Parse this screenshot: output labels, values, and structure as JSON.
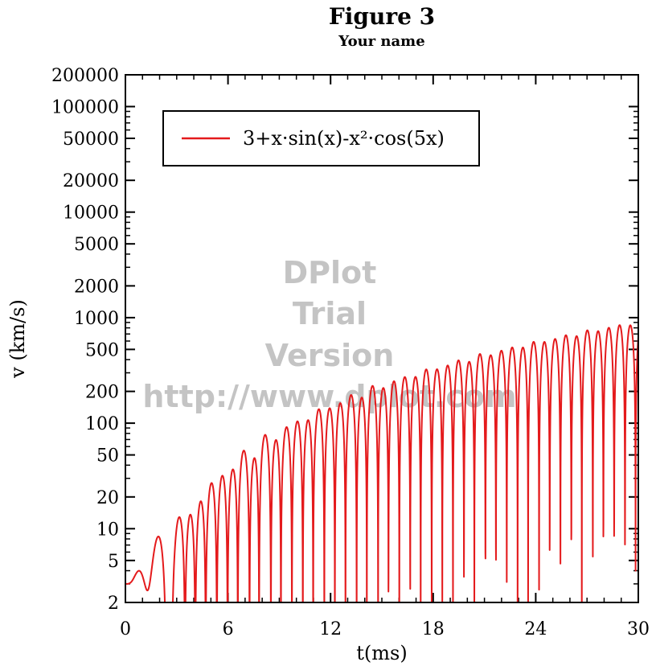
{
  "chart_data": {
    "type": "line",
    "title": "Figure 3",
    "subtitle": "Your name",
    "xlabel": "t(ms)",
    "ylabel": "v (km/s)",
    "xlim": [
      0,
      30
    ],
    "ylim": [
      2,
      200000
    ],
    "yscale": "log",
    "xticks": [
      0,
      6,
      12,
      18,
      24,
      30
    ],
    "yticks": [
      2,
      5,
      10,
      20,
      50,
      100,
      200,
      500,
      1000,
      2000,
      5000,
      10000,
      20000,
      50000,
      100000,
      200000
    ],
    "grid": false,
    "legend_position": "top-left",
    "series": [
      {
        "name": "3+x·sin(x)-x²·cos(5x)",
        "function": "3+x*sin(x)-x^2*cos(5*x)",
        "color": "#e41a1c"
      }
    ],
    "watermark": [
      "DPlot",
      "Trial",
      "Version",
      "http://www.dplot.com"
    ]
  }
}
